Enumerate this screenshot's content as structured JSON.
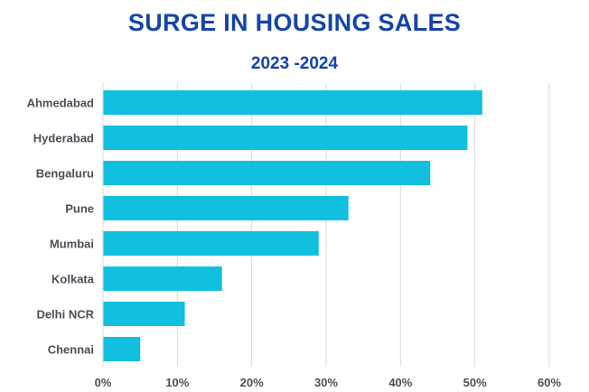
{
  "colors": {
    "title": "#1544a8",
    "bar": "#10c0de",
    "grid": "#d9d9d9",
    "label": "#4a4f57"
  },
  "chart_data": {
    "type": "bar",
    "orientation": "horizontal",
    "title": "SURGE IN HOUSING SALES",
    "subtitle": "2023 -2024",
    "xlabel": "",
    "ylabel": "",
    "categories": [
      "Ahmedabad",
      "Hyderabad",
      "Bengaluru",
      "Pune",
      "Mumbai",
      "Kolkata",
      "Delhi NCR",
      "Chennai"
    ],
    "values": [
      51,
      49,
      44,
      33,
      29,
      16,
      11,
      5
    ],
    "xlim": [
      0,
      60
    ],
    "x_ticks": [
      0,
      10,
      20,
      30,
      40,
      50,
      60
    ],
    "x_tick_labels": [
      "0%",
      "10%",
      "20%",
      "30%",
      "40%",
      "50%",
      "60%"
    ],
    "unit": "%",
    "grid": "vertical",
    "legend": "none"
  }
}
